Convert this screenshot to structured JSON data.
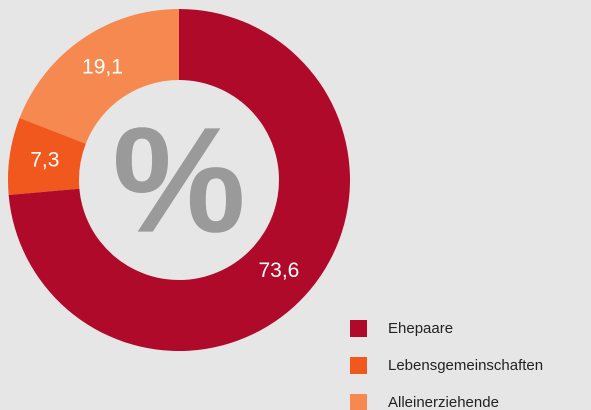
{
  "chart_data": {
    "type": "donut",
    "center_label": "%",
    "categories": [
      "Ehepaare",
      "Lebensgemeinschaften",
      "Alleinerziehende"
    ],
    "values": [
      73.6,
      7.3,
      19.1
    ],
    "value_labels": [
      "73,6",
      "7,3",
      "19,1"
    ],
    "colors": [
      "#b00a2a",
      "#f0581e",
      "#f5894f"
    ],
    "legend": "bottom-right"
  }
}
